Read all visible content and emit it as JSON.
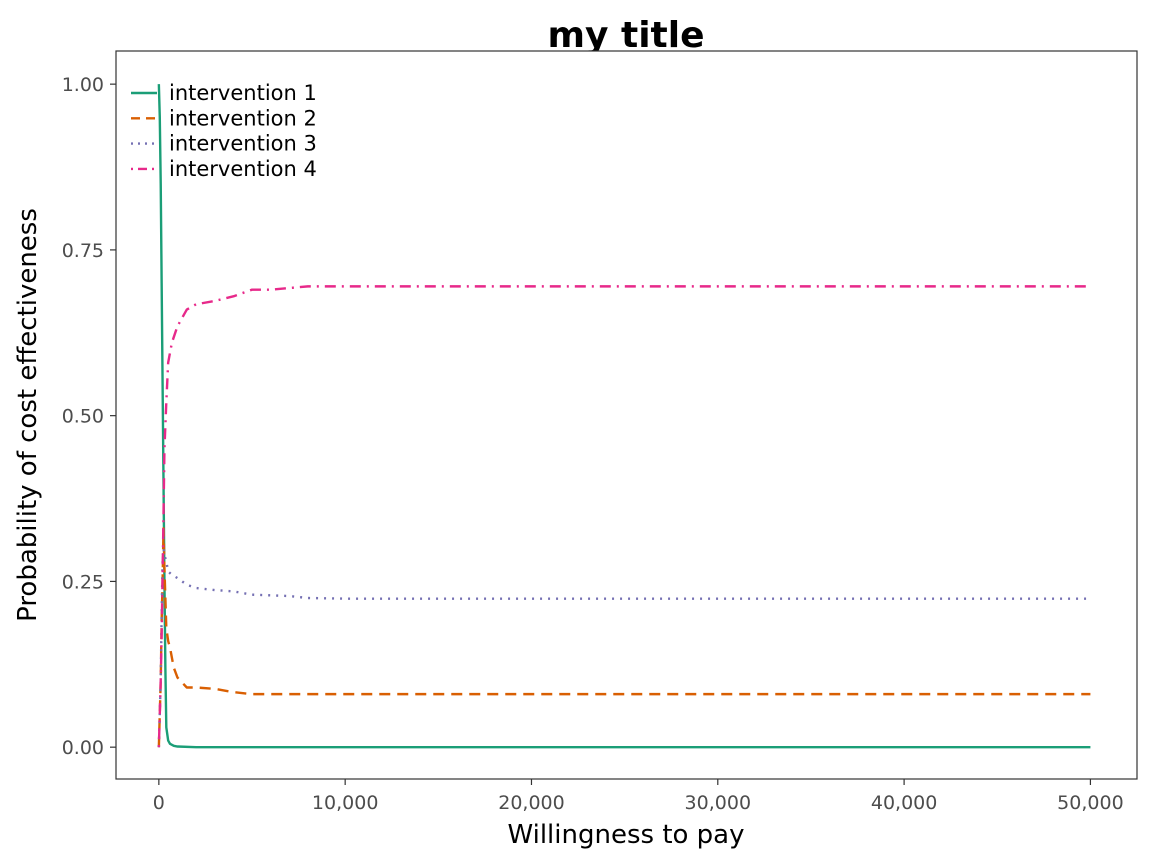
{
  "chart_data": {
    "type": "line",
    "title": "my title",
    "xlabel": "Willingness to pay",
    "ylabel": "Probability of cost effectiveness",
    "xlim": [
      -2300,
      52500
    ],
    "ylim": [
      -0.048,
      1.05
    ],
    "x_ticks": [
      0,
      10000,
      20000,
      30000,
      40000,
      50000
    ],
    "x_tick_labels": [
      "0",
      "10,000",
      "20,000",
      "30,000",
      "40,000",
      "50,000"
    ],
    "y_ticks": [
      0,
      0.25,
      0.5,
      0.75,
      1.0
    ],
    "y_tick_labels": [
      "0.00",
      "0.25",
      "0.50",
      "0.75",
      "1.00"
    ],
    "grid": false,
    "legend_position": "top-left",
    "series": [
      {
        "name": "intervention 1",
        "color": "#1b9e77",
        "dash": "solid",
        "x": [
          0,
          50,
          100,
          150,
          200,
          250,
          300,
          350,
          400,
          500,
          600,
          800,
          1000,
          2000,
          5000,
          10000,
          20000,
          30000,
          40000,
          50000
        ],
        "y": [
          1.0,
          0.95,
          0.85,
          0.7,
          0.55,
          0.4,
          0.25,
          0.12,
          0.03,
          0.01,
          0.005,
          0.002,
          0.001,
          0,
          0,
          0,
          0,
          0,
          0,
          0
        ]
      },
      {
        "name": "intervention 2",
        "color": "#d95f02",
        "dash": "dashed",
        "x": [
          0,
          50,
          100,
          150,
          200,
          250,
          300,
          400,
          500,
          600,
          800,
          1000,
          1500,
          2000,
          3000,
          4000,
          5000,
          10000,
          20000,
          30000,
          40000,
          50000
        ],
        "y": [
          0,
          0.05,
          0.1,
          0.19,
          0.25,
          0.33,
          0.27,
          0.18,
          0.16,
          0.15,
          0.12,
          0.105,
          0.09,
          0.09,
          0.088,
          0.083,
          0.08,
          0.08,
          0.08,
          0.08,
          0.08,
          0.08
        ]
      },
      {
        "name": "intervention 3",
        "color": "#7570b3",
        "dash": "dotted",
        "x": [
          0,
          50,
          100,
          150,
          200,
          250,
          300,
          400,
          500,
          700,
          1000,
          1500,
          2000,
          3000,
          4000,
          5000,
          7000,
          8000,
          10000,
          20000,
          30000,
          40000,
          50000
        ],
        "y": [
          0,
          0.05,
          0.1,
          0.2,
          0.28,
          0.3,
          0.29,
          0.28,
          0.265,
          0.26,
          0.255,
          0.245,
          0.24,
          0.237,
          0.235,
          0.23,
          0.228,
          0.225,
          0.224,
          0.224,
          0.224,
          0.224,
          0.224
        ]
      },
      {
        "name": "intervention 4",
        "color": "#e7298a",
        "dash": "dashdot",
        "x": [
          0,
          50,
          100,
          150,
          200,
          250,
          300,
          400,
          500,
          700,
          1000,
          1500,
          2000,
          3000,
          4000,
          5000,
          6000,
          8000,
          10000,
          20000,
          30000,
          40000,
          50000
        ],
        "y": [
          0,
          0.05,
          0.1,
          0.17,
          0.26,
          0.35,
          0.45,
          0.52,
          0.58,
          0.61,
          0.635,
          0.66,
          0.668,
          0.673,
          0.68,
          0.69,
          0.69,
          0.695,
          0.695,
          0.695,
          0.695,
          0.695,
          0.695
        ]
      }
    ]
  }
}
